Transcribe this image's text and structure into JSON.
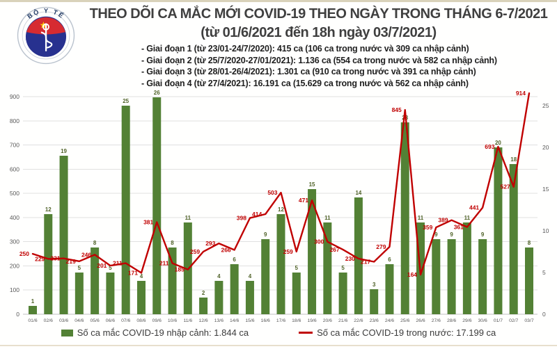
{
  "header": {
    "logo": {
      "top_text": "BỘ Y TẾ",
      "bottom_text": "MINISTRY OF HEALTH"
    },
    "title_line1": "THEO DÕI CA MẮC MỚI COVID-19 THEO NGÀY TRONG THÁNG 6-7/2021",
    "title_line2": "(từ 01/6/2021 đến 18h ngày 03/7/2021)",
    "bullets": [
      "- Giai đoạn 1 (từ 23/01-24/7/2020): 415 ca (106 ca trong nước và 309 ca nhập cảnh)",
      "- Giai đoạn 2 (từ 25/7/2020-27/01/2021): 1.136 ca (554 ca trong nước và 582 ca nhập cảnh)",
      "- Giai đoạn 3 (từ 28/01-26/4/2021): 1.301 ca (910 ca trong nước và 391 ca nhập cảnh)",
      "- Giai đoạn 4 (từ 27/4/2021): 16.191 ca (15.629 ca trong nước và 562 ca nhập cảnh)"
    ]
  },
  "chart_data": {
    "type": "bar",
    "subtype": "combo bar+line, dual axis",
    "categories": [
      "01/6",
      "02/6",
      "03/6",
      "04/6",
      "05/6",
      "06/6",
      "07/6",
      "08/6",
      "09/6",
      "10/6",
      "11/6",
      "12/6",
      "13/6",
      "14/6",
      "15/6",
      "16/6",
      "17/6",
      "18/6",
      "19/6",
      "20/6",
      "21/6",
      "22/6",
      "23/6",
      "24/6",
      "25/6",
      "26/6",
      "27/6",
      "28/6",
      "29/6",
      "30/6",
      "01/7",
      "02/7",
      "03/7"
    ],
    "series": [
      {
        "name": "Số ca mắc COVID-19 nhập cảnh",
        "type": "bar",
        "axis": "right",
        "color": "#538135",
        "label_color": "#4f6228",
        "values": [
          1,
          12,
          19,
          5,
          8,
          5,
          25,
          4,
          26,
          8,
          11,
          2,
          4,
          6,
          4,
          9,
          12,
          5,
          15,
          11,
          5,
          14,
          3,
          6,
          23,
          11,
          9,
          9,
          11,
          9,
          20,
          18,
          8
        ]
      },
      {
        "name": "Số ca mắc COVID-19 trong nước",
        "type": "line",
        "axis": "left",
        "color": "#c00000",
        "label_color": "#c00000",
        "values": [
          250,
          229,
          231,
          219,
          246,
          201,
          211,
          171,
          381,
          211,
          185,
          259,
          293,
          266,
          398,
          414,
          503,
          259,
          471,
          300,
          267,
          230,
          217,
          279,
          845,
          164,
          359,
          389,
          361,
          441,
          693,
          527,
          914
        ]
      }
    ],
    "left_axis": {
      "min": 0,
      "max": 900,
      "step": 100
    },
    "right_axis": {
      "min": 0,
      "max": 25,
      "step": 5
    },
    "grid": true,
    "legend_position": "bottom",
    "title": "THEO DÕI CA MẮC MỚI COVID-19 THEO NGÀY TRONG THÁNG 6-7/2021 (từ 01/6/2021 đến 18h ngày 03/7/2021)"
  },
  "legend": {
    "items": [
      {
        "label": "Số ca mắc COVID-19 nhập cảnh: 1.844 ca",
        "marker": "square",
        "color": "#538135"
      },
      {
        "label": "Số ca mắc COVID-19 trong nước: 17.199 ca",
        "marker": "line",
        "color": "#c00000"
      }
    ]
  },
  "colors": {
    "bar_green": "#538135",
    "bar_label_green": "#4f6228",
    "line_red": "#c00000",
    "axis_text_gray": "#595959",
    "gridline_gray": "#e0e0e0",
    "title_gray": "#3f3f3f"
  }
}
